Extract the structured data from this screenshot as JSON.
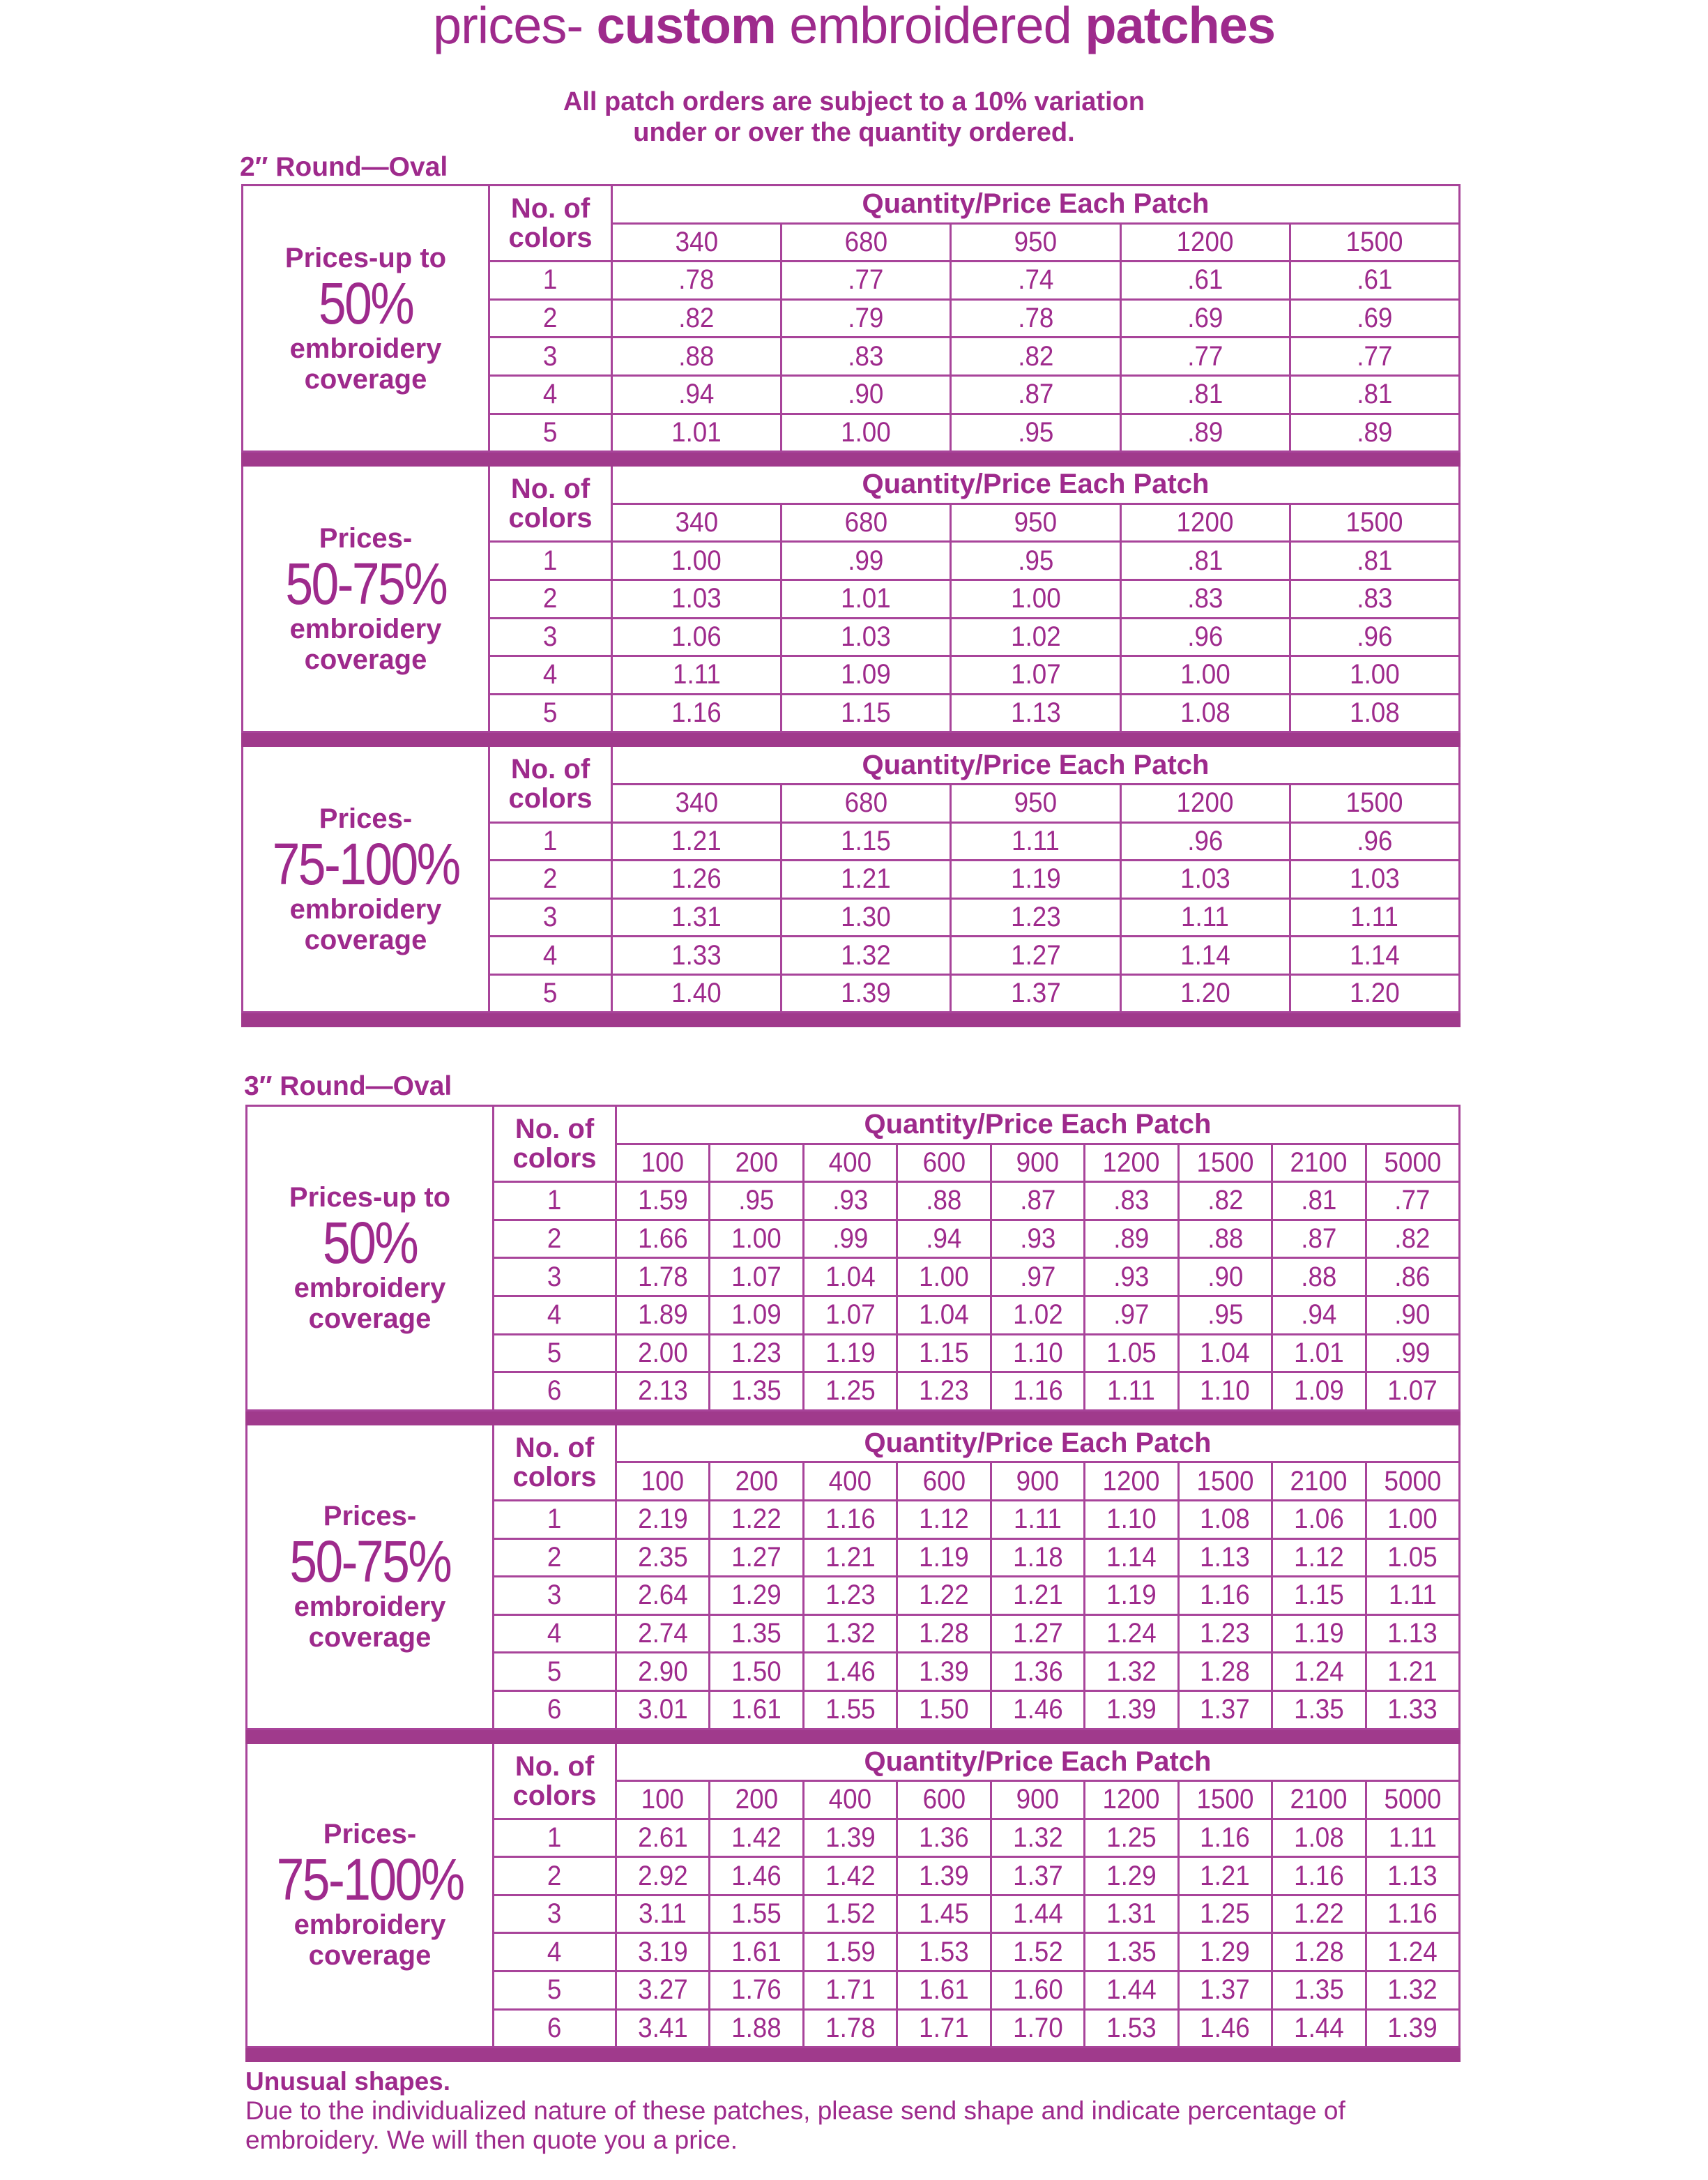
{
  "title": {
    "part1": "prices- ",
    "part2": "custom",
    "part3": " embroidered ",
    "part4": "patches"
  },
  "notice": {
    "line1": "All patch orders are subject to a 10% variation",
    "line2": "under or over the quantity ordered."
  },
  "accent_color": "#9e2a8c",
  "tables": [
    {
      "label": "2″ Round—Oval",
      "quantity_header": "Quantity/Price Each Patch",
      "colors_header": [
        "No. of",
        "colors"
      ],
      "quantities": [
        "340",
        "680",
        "950",
        "1200",
        "1500"
      ],
      "blocks": [
        {
          "label_top": "Prices-up to",
          "percent": "50%",
          "label_bottom": [
            "embroidery",
            "coverage"
          ],
          "rows": [
            {
              "colors": "1",
              "prices": [
                ".78",
                ".77",
                ".74",
                ".61",
                ".61"
              ]
            },
            {
              "colors": "2",
              "prices": [
                ".82",
                ".79",
                ".78",
                ".69",
                ".69"
              ]
            },
            {
              "colors": "3",
              "prices": [
                ".88",
                ".83",
                ".82",
                ".77",
                ".77"
              ]
            },
            {
              "colors": "4",
              "prices": [
                ".94",
                ".90",
                ".87",
                ".81",
                ".81"
              ]
            },
            {
              "colors": "5",
              "prices": [
                "1.01",
                "1.00",
                ".95",
                ".89",
                ".89"
              ]
            }
          ]
        },
        {
          "label_top": "Prices-",
          "percent": "50-75%",
          "label_bottom": [
            "embroidery",
            "coverage"
          ],
          "rows": [
            {
              "colors": "1",
              "prices": [
                "1.00",
                ".99",
                ".95",
                ".81",
                ".81"
              ]
            },
            {
              "colors": "2",
              "prices": [
                "1.03",
                "1.01",
                "1.00",
                ".83",
                ".83"
              ]
            },
            {
              "colors": "3",
              "prices": [
                "1.06",
                "1.03",
                "1.02",
                ".96",
                ".96"
              ]
            },
            {
              "colors": "4",
              "prices": [
                "1.11",
                "1.09",
                "1.07",
                "1.00",
                "1.00"
              ]
            },
            {
              "colors": "5",
              "prices": [
                "1.16",
                "1.15",
                "1.13",
                "1.08",
                "1.08"
              ]
            }
          ]
        },
        {
          "label_top": "Prices-",
          "percent": "75-100%",
          "label_bottom": [
            "embroidery",
            "coverage"
          ],
          "rows": [
            {
              "colors": "1",
              "prices": [
                "1.21",
                "1.15",
                "1.11",
                ".96",
                ".96"
              ]
            },
            {
              "colors": "2",
              "prices": [
                "1.26",
                "1.21",
                "1.19",
                "1.03",
                "1.03"
              ]
            },
            {
              "colors": "3",
              "prices": [
                "1.31",
                "1.30",
                "1.23",
                "1.11",
                "1.11"
              ]
            },
            {
              "colors": "4",
              "prices": [
                "1.33",
                "1.32",
                "1.27",
                "1.14",
                "1.14"
              ]
            },
            {
              "colors": "5",
              "prices": [
                "1.40",
                "1.39",
                "1.37",
                "1.20",
                "1.20"
              ]
            }
          ]
        }
      ]
    },
    {
      "label": "3″ Round—Oval",
      "quantity_header": "Quantity/Price Each Patch",
      "colors_header": [
        "No. of",
        "colors"
      ],
      "quantities": [
        "100",
        "200",
        "400",
        "600",
        "900",
        "1200",
        "1500",
        "2100",
        "5000"
      ],
      "blocks": [
        {
          "label_top": "Prices-up to",
          "percent": "50%",
          "label_bottom": [
            "embroidery",
            "coverage"
          ],
          "rows": [
            {
              "colors": "1",
              "prices": [
                "1.59",
                ".95",
                ".93",
                ".88",
                ".87",
                ".83",
                ".82",
                ".81",
                ".77"
              ]
            },
            {
              "colors": "2",
              "prices": [
                "1.66",
                "1.00",
                ".99",
                ".94",
                ".93",
                ".89",
                ".88",
                ".87",
                ".82"
              ]
            },
            {
              "colors": "3",
              "prices": [
                "1.78",
                "1.07",
                "1.04",
                "1.00",
                ".97",
                ".93",
                ".90",
                ".88",
                ".86"
              ]
            },
            {
              "colors": "4",
              "prices": [
                "1.89",
                "1.09",
                "1.07",
                "1.04",
                "1.02",
                ".97",
                ".95",
                ".94",
                ".90"
              ]
            },
            {
              "colors": "5",
              "prices": [
                "2.00",
                "1.23",
                "1.19",
                "1.15",
                "1.10",
                "1.05",
                "1.04",
                "1.01",
                ".99"
              ]
            },
            {
              "colors": "6",
              "prices": [
                "2.13",
                "1.35",
                "1.25",
                "1.23",
                "1.16",
                "1.11",
                "1.10",
                "1.09",
                "1.07"
              ]
            }
          ]
        },
        {
          "label_top": "Prices-",
          "percent": "50-75%",
          "label_bottom": [
            "embroidery",
            "coverage"
          ],
          "rows": [
            {
              "colors": "1",
              "prices": [
                "2.19",
                "1.22",
                "1.16",
                "1.12",
                "1.11",
                "1.10",
                "1.08",
                "1.06",
                "1.00"
              ]
            },
            {
              "colors": "2",
              "prices": [
                "2.35",
                "1.27",
                "1.21",
                "1.19",
                "1.18",
                "1.14",
                "1.13",
                "1.12",
                "1.05"
              ]
            },
            {
              "colors": "3",
              "prices": [
                "2.64",
                "1.29",
                "1.23",
                "1.22",
                "1.21",
                "1.19",
                "1.16",
                "1.15",
                "1.11"
              ]
            },
            {
              "colors": "4",
              "prices": [
                "2.74",
                "1.35",
                "1.32",
                "1.28",
                "1.27",
                "1.24",
                "1.23",
                "1.19",
                "1.13"
              ]
            },
            {
              "colors": "5",
              "prices": [
                "2.90",
                "1.50",
                "1.46",
                "1.39",
                "1.36",
                "1.32",
                "1.28",
                "1.24",
                "1.21"
              ]
            },
            {
              "colors": "6",
              "prices": [
                "3.01",
                "1.61",
                "1.55",
                "1.50",
                "1.46",
                "1.39",
                "1.37",
                "1.35",
                "1.33"
              ]
            }
          ]
        },
        {
          "label_top": "Prices-",
          "percent": "75-100%",
          "label_bottom": [
            "embroidery",
            "coverage"
          ],
          "rows": [
            {
              "colors": "1",
              "prices": [
                "2.61",
                "1.42",
                "1.39",
                "1.36",
                "1.32",
                "1.25",
                "1.16",
                "1.08",
                "1.11"
              ]
            },
            {
              "colors": "2",
              "prices": [
                "2.92",
                "1.46",
                "1.42",
                "1.39",
                "1.37",
                "1.29",
                "1.21",
                "1.16",
                "1.13"
              ]
            },
            {
              "colors": "3",
              "prices": [
                "3.11",
                "1.55",
                "1.52",
                "1.45",
                "1.44",
                "1.31",
                "1.25",
                "1.22",
                "1.16"
              ]
            },
            {
              "colors": "4",
              "prices": [
                "3.19",
                "1.61",
                "1.59",
                "1.53",
                "1.52",
                "1.35",
                "1.29",
                "1.28",
                "1.24"
              ]
            },
            {
              "colors": "5",
              "prices": [
                "3.27",
                "1.76",
                "1.71",
                "1.61",
                "1.60",
                "1.44",
                "1.37",
                "1.35",
                "1.32"
              ]
            },
            {
              "colors": "6",
              "prices": [
                "3.41",
                "1.88",
                "1.78",
                "1.71",
                "1.70",
                "1.53",
                "1.46",
                "1.44",
                "1.39"
              ]
            }
          ]
        }
      ]
    }
  ],
  "footer": {
    "heading": "Unusual shapes.",
    "line1": "Due to the individualized nature of these patches, please send shape and indicate percentage of",
    "line2": "embroidery. We will then quote you a price."
  }
}
